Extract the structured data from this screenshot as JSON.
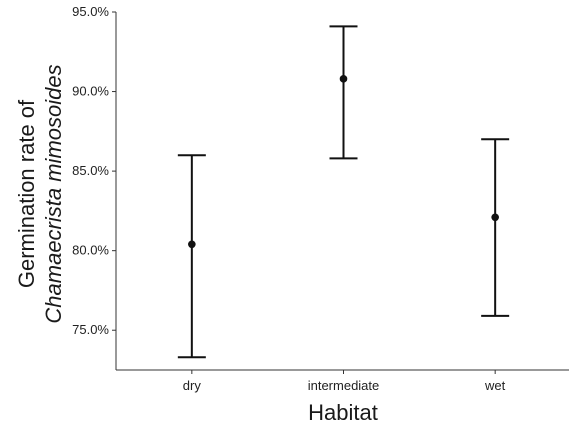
{
  "chart_data": {
    "type": "errorbar",
    "xlabel": "Habitat",
    "ylabel_line1": "Germination rate of",
    "ylabel_line2": "Chamaecrista mimosoides",
    "categories": [
      "dry",
      "intermediate",
      "wet"
    ],
    "series": [
      {
        "mean": [
          80.4,
          90.8,
          82.1
        ],
        "lower": [
          73.3,
          85.8,
          75.9
        ],
        "upper": [
          86.0,
          94.1,
          87.0
        ]
      }
    ],
    "yticks": [
      75.0,
      80.0,
      85.0,
      90.0,
      95.0
    ],
    "ytick_labels": [
      "75.0%",
      "80.0%",
      "85.0%",
      "90.0%",
      "95.0%"
    ],
    "ylim": [
      72.5,
      95.0
    ],
    "grid": false,
    "colors": {
      "marks": "#111111",
      "axis": "#333333"
    }
  }
}
